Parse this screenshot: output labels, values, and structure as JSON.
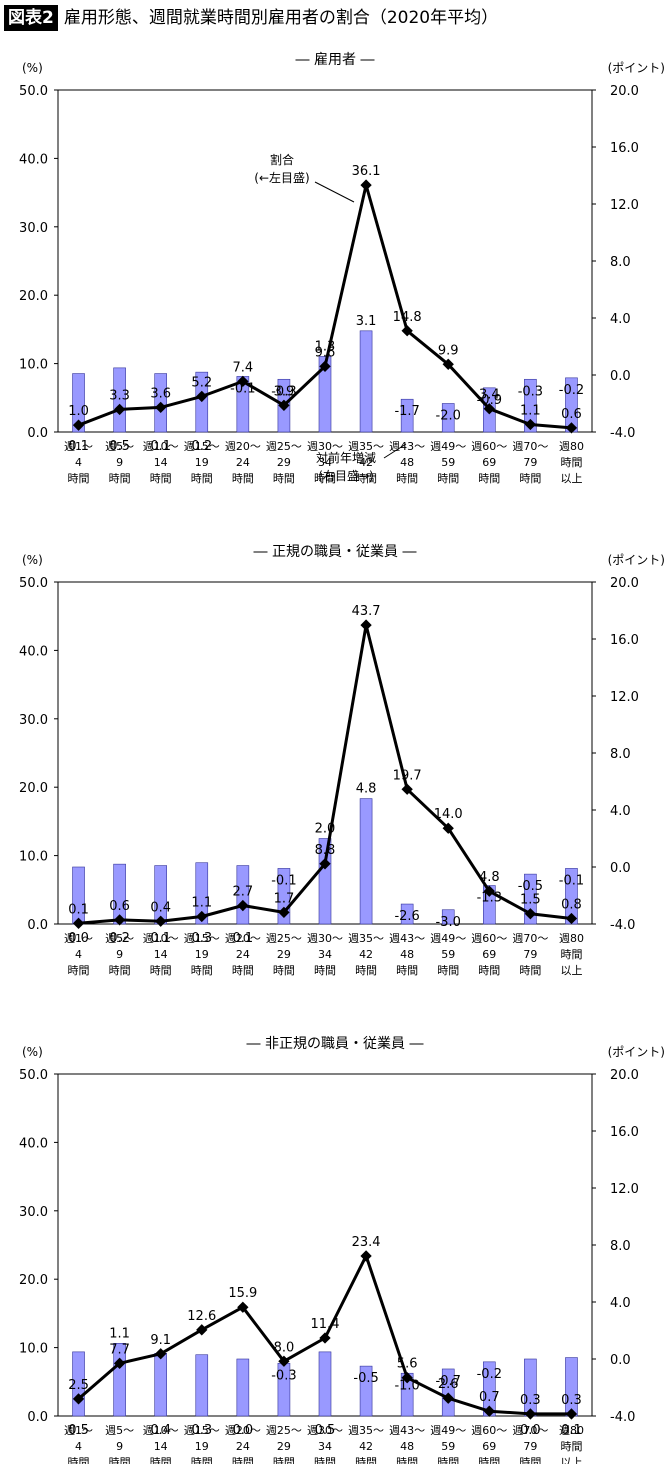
{
  "header": {
    "figure_label": "図表2",
    "title": "雇用形態、週間就業時間別雇用者の割合（2020年平均）"
  },
  "colors": {
    "line": "#000000",
    "bar": "#9999ff",
    "bar_stroke": "#33339a"
  },
  "categories": [
    [
      "週1～",
      "4",
      "時間"
    ],
    [
      "週5～",
      "9",
      "時間"
    ],
    [
      "週10～",
      "14",
      "時間"
    ],
    [
      "週15～",
      "19",
      "時間"
    ],
    [
      "週20～",
      "24",
      "時間"
    ],
    [
      "週25～",
      "29",
      "時間"
    ],
    [
      "週30～",
      "34",
      "時間"
    ],
    [
      "週35～",
      "42",
      "時間"
    ],
    [
      "週43～",
      "48",
      "時間"
    ],
    [
      "週49～",
      "59",
      "時間"
    ],
    [
      "週60～",
      "69",
      "時間"
    ],
    [
      "週70～",
      "79",
      "時間"
    ],
    [
      "週80",
      "時間",
      "以上"
    ]
  ],
  "chart_data": [
    {
      "type": "bar+line",
      "title": "― 雇用者 ―",
      "ylabel_left": "(%)",
      "ylabel_right": "(ポイント)",
      "ylim_left": [
        0,
        50
      ],
      "ylim_right": [
        -4,
        20
      ],
      "yticks_left": [
        "50.0",
        "40.0",
        "30.0",
        "20.0",
        "10.0",
        "0.0"
      ],
      "yticks_right": [
        "20.0",
        "16.0",
        "12.0",
        "8.0",
        "4.0",
        "0.0",
        "-4.0"
      ],
      "line_values": [
        1.0,
        3.3,
        3.6,
        5.2,
        7.4,
        3.9,
        9.6,
        36.1,
        14.8,
        9.9,
        3.4,
        1.1,
        0.6
      ],
      "line_labels": [
        "1.0",
        "3.3",
        "3.6",
        "5.2",
        "7.4",
        "3.9",
        "9.6",
        "36.1",
        "14.8",
        "9.9",
        "3.4",
        "1.1",
        "0.6"
      ],
      "bar_values": [
        0.1,
        0.5,
        0.1,
        0.2,
        -0.1,
        -0.3,
        1.3,
        3.1,
        -1.7,
        -2.0,
        -0.9,
        -0.3,
        -0.2
      ],
      "bar_labels": [
        "0.1",
        "0.5",
        "0.1",
        "0.2",
        "-0.1",
        "-0.3",
        "1.3",
        "3.1",
        "-1.7",
        "-2.0",
        "-0.9",
        "-0.3",
        "-0.2"
      ],
      "annotations": {
        "line_note": [
          "割合",
          "(←左目盛)"
        ],
        "bar_note": [
          "対前年増減",
          "(右目盛→)"
        ]
      }
    },
    {
      "type": "bar+line",
      "title": "― 正規の職員・従業員 ―",
      "ylabel_left": "(%)",
      "ylabel_right": "(ポイント)",
      "ylim_left": [
        0,
        50
      ],
      "ylim_right": [
        -4,
        20
      ],
      "yticks_left": [
        "50.0",
        "40.0",
        "30.0",
        "20.0",
        "10.0",
        "0.0"
      ],
      "yticks_right": [
        "20.0",
        "16.0",
        "12.0",
        "8.0",
        "4.0",
        "0.0",
        "-4.0"
      ],
      "line_values": [
        0.1,
        0.6,
        0.4,
        1.1,
        2.7,
        1.7,
        8.8,
        43.7,
        19.7,
        14.0,
        4.8,
        1.5,
        0.8
      ],
      "line_labels": [
        "0.1",
        "0.6",
        "0.4",
        "1.1",
        "2.7",
        "1.7",
        "8.8",
        "43.7",
        "19.7",
        "14.0",
        "4.8",
        "1.5",
        "0.8"
      ],
      "bar_values": [
        0.0,
        0.2,
        0.1,
        0.3,
        0.1,
        -0.1,
        2.0,
        4.8,
        -2.6,
        -3.0,
        -1.3,
        -0.5,
        -0.1
      ],
      "bar_labels": [
        "0.0",
        "0.2",
        "0.1",
        "0.3",
        "0.1",
        "-0.1",
        "2.0",
        "4.8",
        "-2.6",
        "-3.0",
        "-1.3",
        "-0.5",
        "-0.1"
      ]
    },
    {
      "type": "bar+line",
      "title": "― 非正規の職員・従業員 ―",
      "ylabel_left": "(%)",
      "ylabel_right": "(ポイント)",
      "ylim_left": [
        0,
        50
      ],
      "ylim_right": [
        -4,
        20
      ],
      "yticks_left": [
        "50.0",
        "40.0",
        "30.0",
        "20.0",
        "10.0",
        "0.0"
      ],
      "yticks_right": [
        "20.0",
        "16.0",
        "12.0",
        "8.0",
        "4.0",
        "0.0",
        "-4.0"
      ],
      "line_values": [
        2.5,
        7.7,
        9.1,
        12.6,
        15.9,
        8.0,
        11.4,
        23.4,
        5.6,
        2.6,
        0.7,
        0.3,
        0.3
      ],
      "line_labels": [
        "2.5",
        "7.7",
        "9.1",
        "12.6",
        "15.9",
        "8.0",
        "11.4",
        "23.4",
        "5.6",
        "2.6",
        "0.7",
        "0.3",
        "0.3"
      ],
      "bar_values": [
        0.5,
        1.1,
        0.4,
        0.3,
        0.0,
        -0.3,
        0.5,
        -0.5,
        -1.0,
        -0.7,
        -0.2,
        0.0,
        0.1
      ],
      "bar_labels": [
        "0.5",
        "1.1",
        "0.4",
        "0.3",
        "0.0",
        "-0.3",
        "0.5",
        "-0.5",
        "-1.0",
        "-0.7",
        "-0.2",
        "0.0",
        "0.1"
      ]
    }
  ]
}
